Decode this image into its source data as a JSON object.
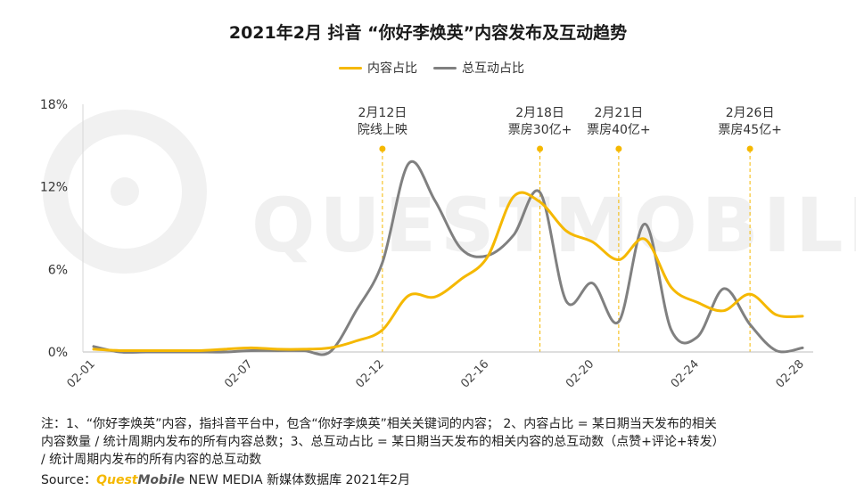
{
  "title": "2021年2月 抖音 “你好李焕英”内容发布及互动趋势",
  "watermark": "QUESTMOBILE",
  "notes": [
    "注：1、“你好李焕英”内容，指抖音平台中，包含“你好李焕英”相关关键词的内容； 2、内容占比 = 某日期当天发布的相关",
    "内容数量 / 统计周期内发布的所有内容总数；3、总互动占比 = 某日期当天发布的相关内容的总互动数（点赞+评论+转发）",
    "/ 统计周期内发布的所有内容的总互动数"
  ],
  "source": {
    "prefix": "Source：",
    "brand_a": "Quest",
    "brand_b": "Mobile",
    "suffix": " NEW MEDIA 新媒体数据库 2021年2月",
    "brand_a_color": "#f5b800",
    "brand_b_color": "#555555"
  },
  "chart_data": {
    "type": "line",
    "title": "2021年2月 抖音 “你好李焕英”内容发布及互动趋势",
    "x": [
      "02-01",
      "02-02",
      "02-03",
      "02-04",
      "02-05",
      "02-06",
      "02-07",
      "02-08",
      "02-09",
      "02-10",
      "02-11",
      "02-12",
      "02-13",
      "02-14",
      "02-15",
      "02-16",
      "02-17",
      "02-18",
      "02-19",
      "02-20",
      "02-21",
      "02-22",
      "02-23",
      "02-24",
      "02-25",
      "02-26",
      "02-27",
      "02-28"
    ],
    "x_tick_labels": [
      "02-01",
      "02-07",
      "02-12",
      "02-16",
      "02-20",
      "02-24",
      "02-28"
    ],
    "y_ticks": [
      "18%",
      "12%",
      "6%",
      "0%"
    ],
    "y_tick_values": [
      18,
      12,
      6,
      0
    ],
    "ylim": [
      0,
      18
    ],
    "y_unit": "%",
    "grid": false,
    "legend_position": "top-center",
    "series": [
      {
        "name": "内容占比",
        "color": "#f5b800",
        "values": [
          0.2,
          0.1,
          0.1,
          0.1,
          0.1,
          0.2,
          0.3,
          0.2,
          0.2,
          0.3,
          0.8,
          1.6,
          4.1,
          4.0,
          5.3,
          6.9,
          11.3,
          10.9,
          8.8,
          8.0,
          6.7,
          8.2,
          4.7,
          3.6,
          3.0,
          4.2,
          2.7,
          2.6
        ]
      },
      {
        "name": "总互动占比",
        "color": "#808080",
        "values": [
          0.4,
          0.0,
          0.0,
          0.0,
          0.0,
          0.0,
          0.1,
          0.1,
          0.1,
          0.0,
          3.0,
          6.5,
          13.7,
          11.0,
          7.5,
          7.0,
          8.5,
          11.6,
          3.7,
          5.0,
          2.2,
          9.3,
          1.6,
          1.1,
          4.6,
          2.0,
          0.1,
          0.3
        ]
      }
    ],
    "annotations": [
      {
        "x": "02-12",
        "line1": "2月12日",
        "line2": "院线上映"
      },
      {
        "x": "02-18",
        "line1": "2月18日",
        "line2": "票房30亿+"
      },
      {
        "x": "02-21",
        "line1": "2月21日",
        "line2": "票房40亿+"
      },
      {
        "x": "02-26",
        "line1": "2月26日",
        "line2": "票房45亿+"
      }
    ]
  }
}
